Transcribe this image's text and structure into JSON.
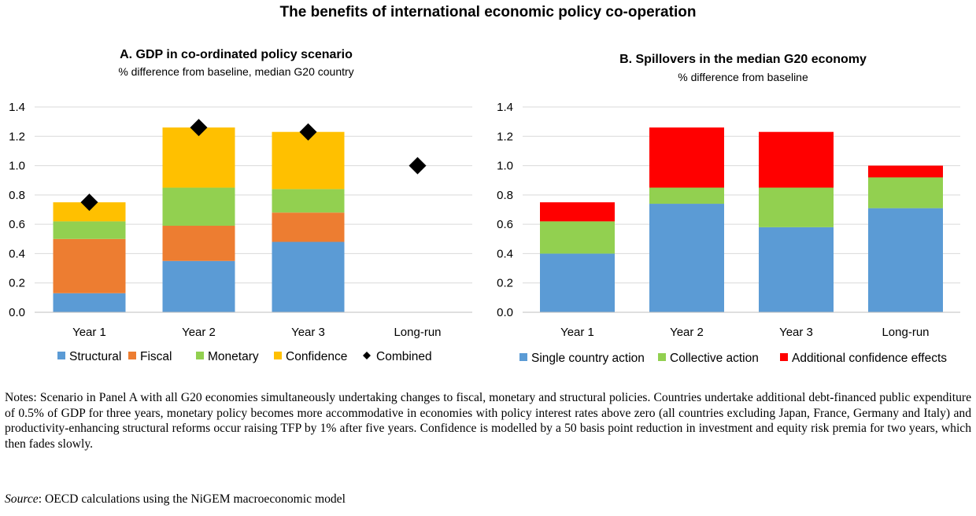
{
  "title": "The benefits of international economic policy co-operation",
  "notes": "Notes: Scenario in Panel A with all G20 economies simultaneously undertaking changes to fiscal, monetary and structural policies. Countries undertake additional debt-financed public expenditure of 0.5% of GDP for three years, monetary policy becomes more accommodative in economies with policy interest rates above zero (all countries excluding Japan, France, Germany and Italy) and productivity-enhancing structural reforms occur raising TFP by 1% after five years. Confidence is modelled by a 50 basis point reduction in investment and equity risk premia for two years, which then fades slowly.",
  "source": {
    "label": "Source",
    "text": ": OECD calculations using the NiGEM macroeconomic model"
  },
  "chart_data": [
    {
      "type": "bar",
      "stacked": true,
      "title": "A. GDP in co-ordinated policy scenario",
      "subtitle": "% difference from baseline, median G20 country",
      "categories": [
        "Year 1",
        "Year 2",
        "Year 3",
        "Long-run"
      ],
      "ylim": [
        0,
        1.4
      ],
      "yticks": [
        "0.0",
        "0.2",
        "0.4",
        "0.6",
        "0.8",
        "1.0",
        "1.2",
        "1.4"
      ],
      "grid": true,
      "legend_position": "bottom",
      "series": [
        {
          "name": "Structural",
          "color": "#5b9bd5",
          "values": [
            0.13,
            0.35,
            0.48,
            0
          ]
        },
        {
          "name": "Fiscal",
          "color": "#ed7d31",
          "values": [
            0.37,
            0.24,
            0.2,
            0
          ]
        },
        {
          "name": "Monetary",
          "color": "#92d050",
          "values": [
            0.12,
            0.26,
            0.16,
            0
          ]
        },
        {
          "name": "Confidence",
          "color": "#ffc000",
          "values": [
            0.13,
            0.41,
            0.39,
            0
          ]
        }
      ],
      "markers": {
        "name": "Combined",
        "color": "#000000",
        "values": [
          0.75,
          1.26,
          1.23,
          1.0
        ]
      }
    },
    {
      "type": "bar",
      "stacked": true,
      "title": "B. Spillovers in the median G20 economy",
      "subtitle": "% difference from baseline",
      "categories": [
        "Year 1",
        "Year 2",
        "Year 3",
        "Long-run"
      ],
      "ylim": [
        0,
        1.4
      ],
      "yticks": [
        "0.0",
        "0.2",
        "0.4",
        "0.6",
        "0.8",
        "1.0",
        "1.2",
        "1.4"
      ],
      "grid": true,
      "legend_position": "bottom",
      "series": [
        {
          "name": "Single country action",
          "color": "#5b9bd5",
          "values": [
            0.4,
            0.74,
            0.58,
            0.71
          ]
        },
        {
          "name": "Collective action",
          "color": "#92d050",
          "values": [
            0.22,
            0.11,
            0.27,
            0.21
          ]
        },
        {
          "name": "Additional confidence effects",
          "color": "#ff0000",
          "values": [
            0.13,
            0.41,
            0.38,
            0.08
          ]
        }
      ]
    }
  ]
}
